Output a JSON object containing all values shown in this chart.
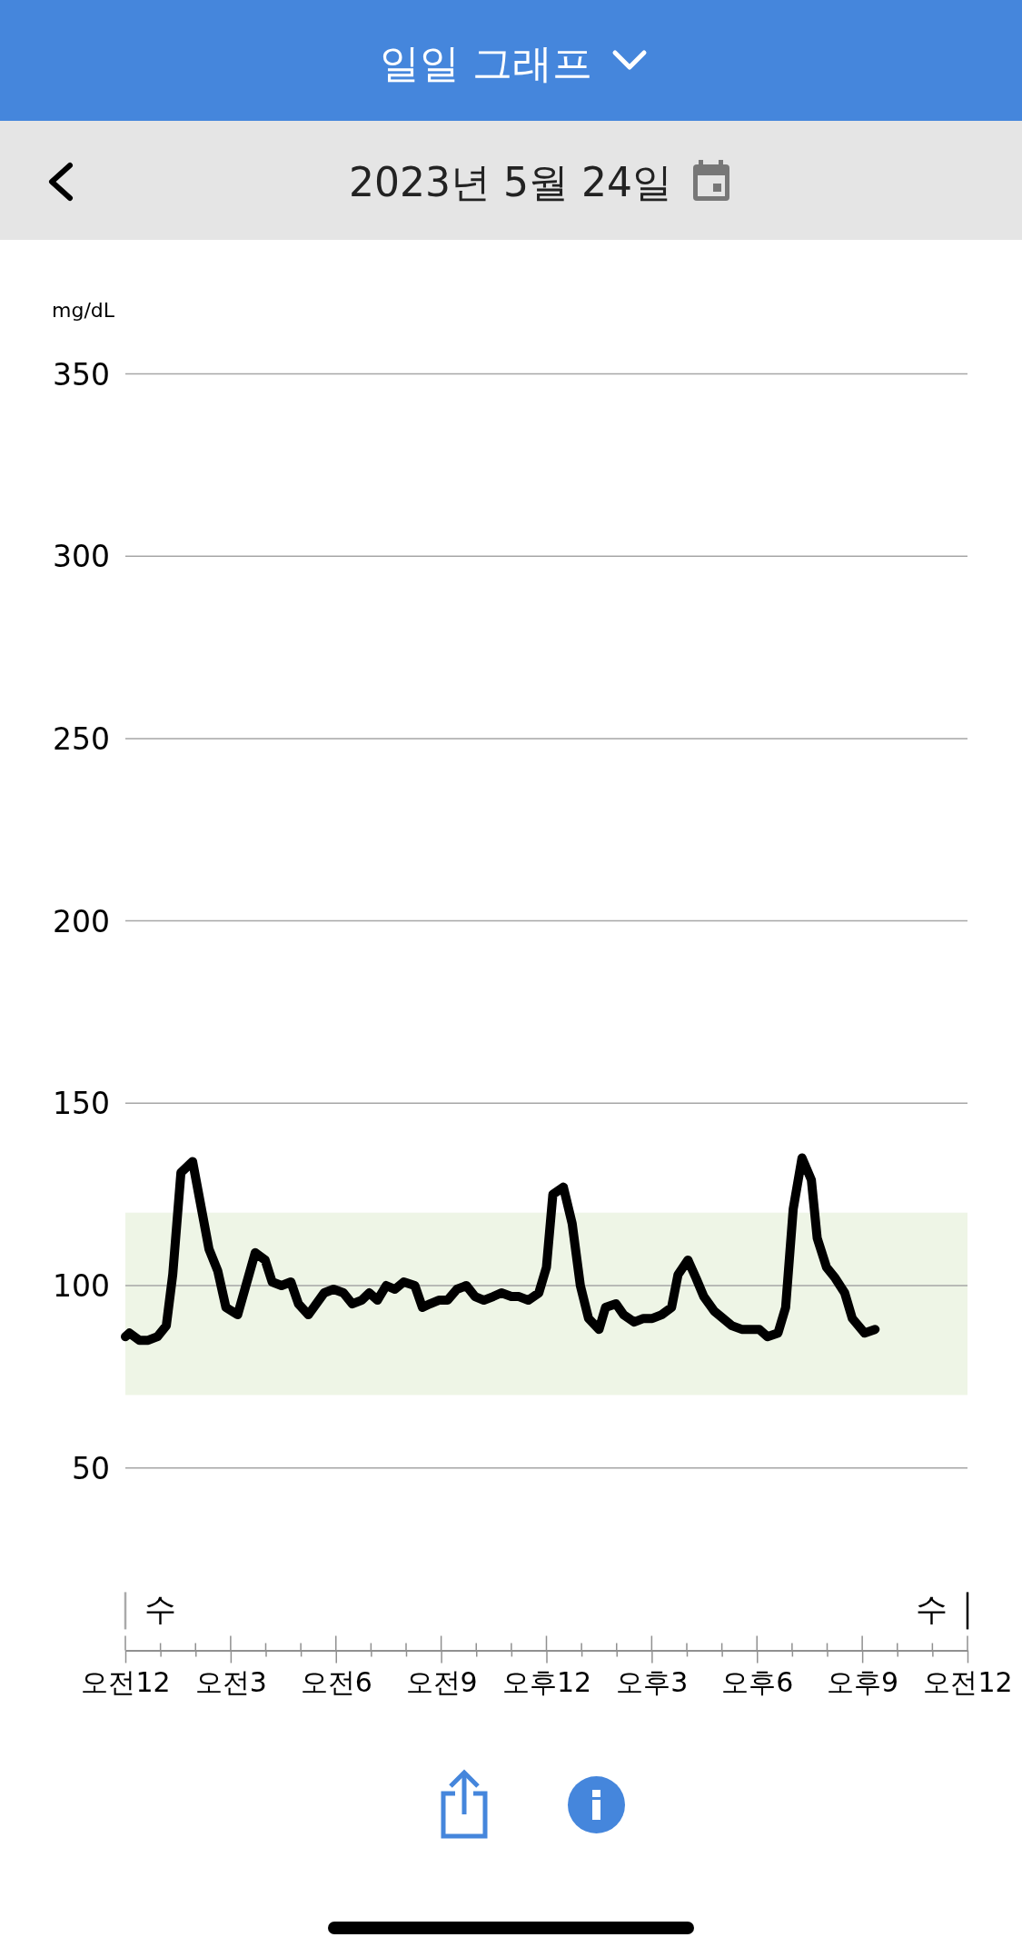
{
  "chart_data": {
    "type": "line",
    "title": "일일 그래프",
    "subtitle": "2023년 5월 24일",
    "ylabel": "mg/dL",
    "x": [
      "2023-05-24T00:00",
      "2023-05-24T00:07",
      "2023-05-24T00:24",
      "2023-05-24T00:39",
      "2023-05-24T00:55",
      "2023-05-24T01:10",
      "2023-05-24T01:21",
      "2023-05-24T01:35",
      "2023-05-24T01:55",
      "2023-05-24T02:23",
      "2023-05-24T02:38",
      "2023-05-24T02:52",
      "2023-05-24T03:12",
      "2023-05-24T03:42",
      "2023-05-24T03:59",
      "2023-05-24T04:11",
      "2023-05-24T04:27",
      "2023-05-24T04:43",
      "2023-05-24T04:56",
      "2023-05-24T05:13",
      "2023-05-24T05:40",
      "2023-05-24T05:56",
      "2023-05-24T06:13",
      "2023-05-24T06:28",
      "2023-05-24T06:44",
      "2023-05-24T06:57",
      "2023-05-24T07:11",
      "2023-05-24T07:26",
      "2023-05-24T07:41",
      "2023-05-24T07:56",
      "2023-05-24T08:15",
      "2023-05-24T08:28",
      "2023-05-24T08:41",
      "2023-05-24T08:56",
      "2023-05-24T09:11",
      "2023-05-24T09:27",
      "2023-05-24T09:43",
      "2023-05-24T09:58",
      "2023-05-24T10:13",
      "2023-05-24T10:29",
      "2023-05-24T10:43",
      "2023-05-24T11:00",
      "2023-05-24T11:13",
      "2023-05-24T11:29",
      "2023-05-24T11:47",
      "2023-05-24T12:00",
      "2023-05-24T12:11",
      "2023-05-24T12:29",
      "2023-05-24T12:44",
      "2023-05-24T12:58",
      "2023-05-24T13:12",
      "2023-05-24T13:30",
      "2023-05-24T13:41",
      "2023-05-24T13:59",
      "2023-05-24T14:12",
      "2023-05-24T14:30",
      "2023-05-24T14:46",
      "2023-05-24T15:01",
      "2023-05-24T15:17",
      "2023-05-24T15:34",
      "2023-05-24T15:45",
      "2023-05-24T16:02",
      "2023-05-24T16:16",
      "2023-05-24T16:29",
      "2023-05-24T16:47",
      "2023-05-24T17:02",
      "2023-05-24T17:17",
      "2023-05-24T17:34",
      "2023-05-24T18:04",
      "2023-05-24T18:18",
      "2023-05-24T18:36",
      "2023-05-24T18:49",
      "2023-05-24T19:02",
      "2023-05-24T19:17",
      "2023-05-24T19:33",
      "2023-05-24T19:43",
      "2023-05-24T19:59",
      "2023-05-24T20:14",
      "2023-05-24T20:30",
      "2023-05-24T20:43",
      "2023-05-24T21:04",
      "2023-05-24T21:22"
    ],
    "series": [
      {
        "color": "#000000",
        "values": [
          86,
          87,
          85,
          85,
          86,
          89,
          103,
          131,
          134,
          110,
          104,
          94,
          92,
          109,
          107,
          101,
          100,
          101,
          95,
          92,
          98,
          99,
          98,
          95,
          96,
          98,
          96,
          100,
          99,
          101,
          100,
          94,
          95,
          96,
          96,
          99,
          100,
          97,
          96,
          97,
          98,
          97,
          97,
          96,
          98,
          105,
          125,
          127,
          117,
          100,
          91,
          88,
          94,
          95,
          92,
          90,
          91,
          91,
          92,
          94,
          103,
          107,
          102,
          97,
          93,
          91,
          89,
          88,
          88,
          86,
          87,
          94,
          121,
          135,
          129,
          113,
          105,
          102,
          98,
          91,
          87,
          88
        ]
      }
    ],
    "xlim": [
      "2023-05-24T00:00",
      "2023-05-25T00:00"
    ],
    "xticks": [
      {
        "value": "2023-05-24T00:00",
        "label": "오전12"
      },
      {
        "value": "2023-05-24T01:00",
        "label": null
      },
      {
        "value": "2023-05-24T02:00",
        "label": null
      },
      {
        "value": "2023-05-24T03:00",
        "label": "오전3"
      },
      {
        "value": "2023-05-24T04:00",
        "label": null
      },
      {
        "value": "2023-05-24T05:00",
        "label": null
      },
      {
        "value": "2023-05-24T06:00",
        "label": "오전6"
      },
      {
        "value": "2023-05-24T07:00",
        "label": null
      },
      {
        "value": "2023-05-24T08:00",
        "label": null
      },
      {
        "value": "2023-05-24T09:00",
        "label": "오전9"
      },
      {
        "value": "2023-05-24T10:00",
        "label": null
      },
      {
        "value": "2023-05-24T11:00",
        "label": null
      },
      {
        "value": "2023-05-24T12:00",
        "label": "오후12"
      },
      {
        "value": "2023-05-24T13:00",
        "label": null
      },
      {
        "value": "2023-05-24T14:00",
        "label": null
      },
      {
        "value": "2023-05-24T15:00",
        "label": "오후3"
      },
      {
        "value": "2023-05-24T16:00",
        "label": null
      },
      {
        "value": "2023-05-24T17:00",
        "label": null
      },
      {
        "value": "2023-05-24T18:00",
        "label": "오후6"
      },
      {
        "value": "2023-05-24T19:00",
        "label": null
      },
      {
        "value": "2023-05-24T20:00",
        "label": null
      },
      {
        "value": "2023-05-24T21:00",
        "label": "오후9"
      },
      {
        "value": "2023-05-24T22:00",
        "label": null
      },
      {
        "value": "2023-05-24T23:00",
        "label": null
      },
      {
        "value": "2023-05-25T00:00",
        "label": "오전12"
      }
    ],
    "ylim": [
      0,
      350
    ],
    "yticks": [
      50,
      100,
      150,
      200,
      250,
      300,
      350
    ],
    "grid": "y",
    "bands": [
      {
        "axis": "y",
        "from": 70,
        "to": 120,
        "color": "#eef5e6"
      }
    ],
    "ref_lines": [
      {
        "axis": "x",
        "value": "2023-05-24T00:00",
        "label": "수",
        "color": "#aaaaaa"
      },
      {
        "axis": "x",
        "value": "2023-05-25T00:00",
        "label": "수",
        "color": "#000000"
      }
    ]
  }
}
